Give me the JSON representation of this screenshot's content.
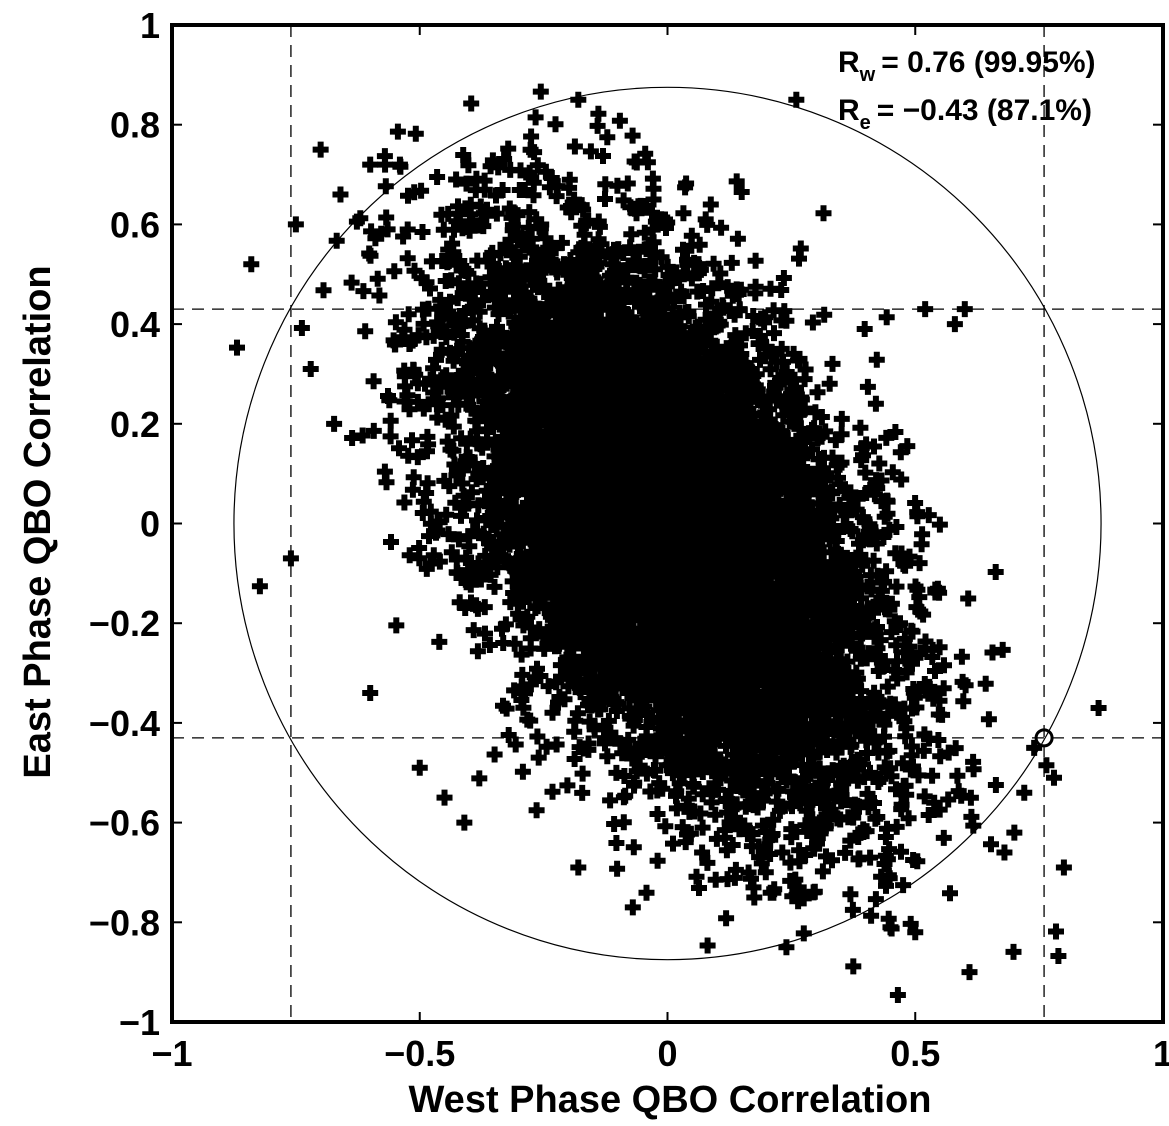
{
  "chart_data": {
    "type": "scatter",
    "xlabel": "West Phase QBO Correlation",
    "ylabel": "East Phase QBO Correlation",
    "xlim": [
      -1,
      1
    ],
    "ylim": [
      -1,
      1
    ],
    "xticks": [
      -1,
      -0.5,
      0,
      0.5,
      1
    ],
    "xtick_labels": [
      "−1",
      "−0.5",
      "0",
      "0.5",
      "1"
    ],
    "yticks": [
      -1,
      -0.8,
      -0.6,
      -0.4,
      -0.2,
      0,
      0.2,
      0.4,
      0.6,
      0.8,
      1
    ],
    "ytick_labels": [
      "−1",
      "−0.8",
      "−0.6",
      "−0.4",
      "−0.2",
      "0",
      "0.2",
      "0.4",
      "0.6",
      "0.8",
      "1"
    ],
    "grid": false,
    "marker": "plus",
    "marker_color": "#000000",
    "cloud": {
      "center": [
        0,
        0
      ],
      "distribution": "bivariate-normal",
      "sd_x": 0.21,
      "sd_y": 0.27,
      "correlation": -0.5,
      "points_shown": 9000
    },
    "outliers": [
      [
        -0.84,
        0.52
      ],
      [
        -0.76,
        -0.07
      ],
      [
        -0.7,
        0.75
      ],
      [
        -0.75,
        0.6
      ],
      [
        -0.72,
        0.31
      ],
      [
        -0.66,
        0.66
      ],
      [
        -0.6,
        0.72
      ],
      [
        -0.57,
        0.72
      ],
      [
        -0.54,
        0.72
      ],
      [
        -0.18,
        0.85
      ],
      [
        0.26,
        0.85
      ],
      [
        0.52,
        0.43
      ],
      [
        0.58,
        0.4
      ],
      [
        0.6,
        0.43
      ],
      [
        0.78,
        -0.51
      ],
      [
        0.8,
        -0.69
      ],
      [
        0.87,
        -0.37
      ],
      [
        0.24,
        -0.85
      ],
      [
        0.5,
        -0.82
      ],
      [
        0.45,
        -0.81
      ],
      [
        -0.5,
        -0.49
      ],
      [
        -0.45,
        -0.55
      ],
      [
        -0.41,
        -0.6
      ],
      [
        -0.18,
        -0.69
      ],
      [
        -0.07,
        -0.77
      ],
      [
        0.68,
        -0.66
      ],
      [
        0.72,
        -0.54
      ],
      [
        0.74,
        -0.45
      ],
      [
        0.7,
        -0.62
      ],
      [
        -0.6,
        -0.34
      ]
    ],
    "reference_lines": {
      "vertical": [
        -0.76,
        0.76
      ],
      "horizontal": [
        -0.43,
        0.43
      ],
      "style": "dashed"
    },
    "circle_radius": 0.875,
    "highlight_point": [
      0.76,
      -0.43
    ],
    "annotations": [
      {
        "main": "R",
        "sub": "w",
        "text": "=  0.76 (99.95%)"
      },
      {
        "main": "R",
        "sub": "e",
        "text": "= −0.43 (87.1%)"
      }
    ]
  }
}
